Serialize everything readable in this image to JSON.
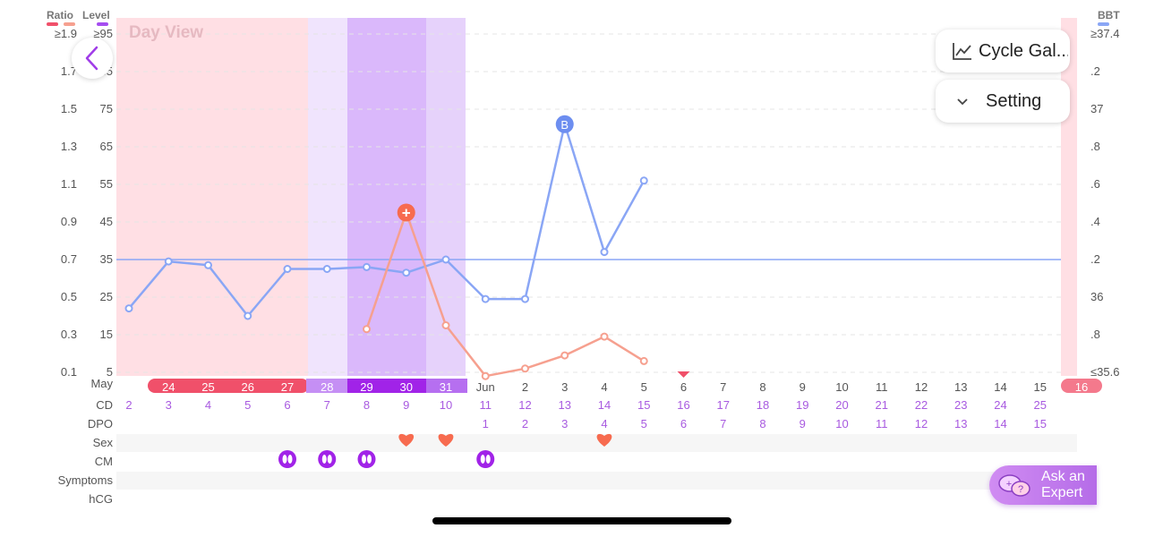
{
  "axes": {
    "ratio_label": "Ratio",
    "level_label": "Level",
    "bbt_label": "BBT",
    "ratio_ticks": [
      "≥1.9",
      "1.7",
      "1.5",
      "1.3",
      "1.1",
      "0.9",
      "0.7",
      "0.5",
      "0.3",
      "0.1"
    ],
    "level_ticks": [
      "≥95",
      "85",
      "75",
      "65",
      "55",
      "45",
      "35",
      "25",
      "15",
      "5"
    ],
    "bbt_ticks": [
      "≥37.4",
      ".2",
      "37",
      ".8",
      ".6",
      ".4",
      ".2",
      "36",
      ".8",
      "≤35.6"
    ]
  },
  "view_label": "Day View",
  "controls": {
    "cycle_label": "Cycle Gal...",
    "setting_label": "Setting"
  },
  "rows": {
    "month": "May",
    "month2": "Jun",
    "cd": "CD",
    "dpo": "DPO",
    "sex": "Sex",
    "cm": "CM",
    "symptoms": "Symptoms",
    "hcg": "hCG"
  },
  "days": [
    "24",
    "25",
    "26",
    "27",
    "28",
    "29",
    "30",
    "31",
    "Jun",
    "2",
    "3",
    "4",
    "5",
    "6",
    "7",
    "8",
    "9",
    "10",
    "11",
    "12",
    "13",
    "14",
    "15"
  ],
  "last_day": "16",
  "cd_values": [
    "2",
    "3",
    "4",
    "5",
    "6",
    "7",
    "8",
    "9",
    "10",
    "11",
    "12",
    "13",
    "14",
    "15",
    "16",
    "17",
    "18",
    "19",
    "20",
    "21",
    "22",
    "23",
    "24",
    "25"
  ],
  "dpo_values": [
    "1",
    "2",
    "3",
    "4",
    "5",
    "6",
    "7",
    "8",
    "9",
    "10",
    "11",
    "12",
    "13",
    "14",
    "15"
  ],
  "expert": {
    "line1": "Ask an",
    "line2": "Expert"
  },
  "chart_data": {
    "type": "line",
    "title": "",
    "x": [
      "May 23",
      "May 24",
      "May 25",
      "May 26",
      "May 27",
      "May 28",
      "May 29",
      "May 30",
      "May 31",
      "Jun 1",
      "Jun 2",
      "Jun 3",
      "Jun 4",
      "Jun 5"
    ],
    "series": [
      {
        "name": "BBT",
        "color": "#8aa6f5",
        "values": [
          35.94,
          36.19,
          36.17,
          35.9,
          36.15,
          36.15,
          36.16,
          36.13,
          36.2,
          35.99,
          35.99,
          36.92,
          36.24,
          36.62
        ]
      },
      {
        "name": "Ratio",
        "color": "#f6a08f",
        "values": [
          null,
          null,
          null,
          null,
          null,
          null,
          0.33,
          0.95,
          0.35,
          0.08,
          0.12,
          0.19,
          0.29,
          0.16
        ]
      }
    ],
    "bbt_coverline": 36.2,
    "ylim_ratio": [
      0.1,
      1.9
    ],
    "ylim_bbt": [
      35.6,
      37.4
    ],
    "peak_marker": {
      "day": "May 30",
      "label": "+"
    },
    "bbt_marker": {
      "day": "Jun 3",
      "label": "B"
    },
    "sex_days": [
      "May 30",
      "May 31",
      "Jun 4"
    ],
    "cm_days": [
      "May 27",
      "May 28",
      "May 29",
      "Jun 1"
    ]
  }
}
